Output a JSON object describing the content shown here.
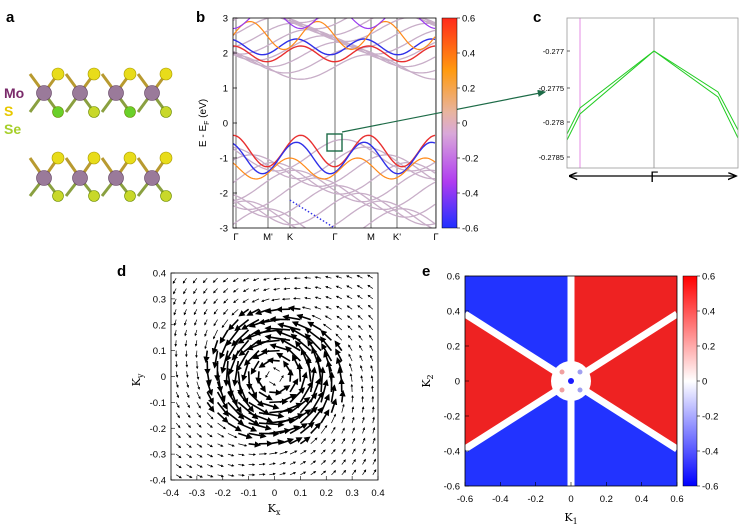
{
  "panels": {
    "a": {
      "label": "a",
      "legend": [
        {
          "text": "Mo",
          "color": "#7a2a6a"
        },
        {
          "text": "S",
          "color": "#e8c800"
        },
        {
          "text": "Se",
          "color": "#a6cf2a"
        }
      ]
    },
    "b": {
      "label": "b",
      "ylabel": "E - E",
      "ylabel_sub": "F",
      "ylabel_unit": " (eV)",
      "yticks": [
        "3",
        "2",
        "1",
        "0",
        "-1",
        "-2",
        "-3"
      ],
      "kpoints": [
        "Γ",
        "M'",
        "K",
        "Γ",
        "M",
        "K'",
        "Γ"
      ],
      "colorbar_ticks": [
        "0.6",
        "0.4",
        "0.2",
        "0",
        "-0.2",
        "-0.4",
        "-0.6"
      ]
    },
    "c": {
      "label": "c",
      "yticks": [
        "-0.277",
        "-0.2775",
        "-0.278",
        "-0.2785"
      ],
      "xlabel": "Γ"
    },
    "d": {
      "label": "d",
      "xlabel": "K",
      "xlabel_sub": "x",
      "ylabel": "K",
      "ylabel_sub": "y",
      "xticks": [
        "-0.4",
        "-0.3",
        "-0.2",
        "-0.1",
        "0",
        "0.1",
        "0.2",
        "0.3",
        "0.4"
      ],
      "yticks": [
        "0.4",
        "0.3",
        "0.2",
        "0.1",
        "0",
        "-0.1",
        "-0.2",
        "-0.3",
        "-0.4"
      ]
    },
    "e": {
      "label": "e",
      "xlabel": "K",
      "xlabel_sub": "1",
      "ylabel": "K",
      "ylabel_sub": "2",
      "xticks": [
        "-0.6",
        "-0.4",
        "-0.2",
        "0",
        "0.2",
        "0.4",
        "0.6"
      ],
      "yticks": [
        "0.6",
        "0.4",
        "0.2",
        "0",
        "-0.2",
        "-0.4",
        "-0.6"
      ],
      "colorbar_ticks": [
        "0.6",
        "0.4",
        "0.2",
        "0",
        "-0.2",
        "-0.4",
        "-0.6"
      ]
    }
  },
  "colors": {
    "red": "#e21c1c",
    "blue": "#1c1ce6",
    "green": "#22cc22",
    "arrow": "#1d6b47"
  }
}
